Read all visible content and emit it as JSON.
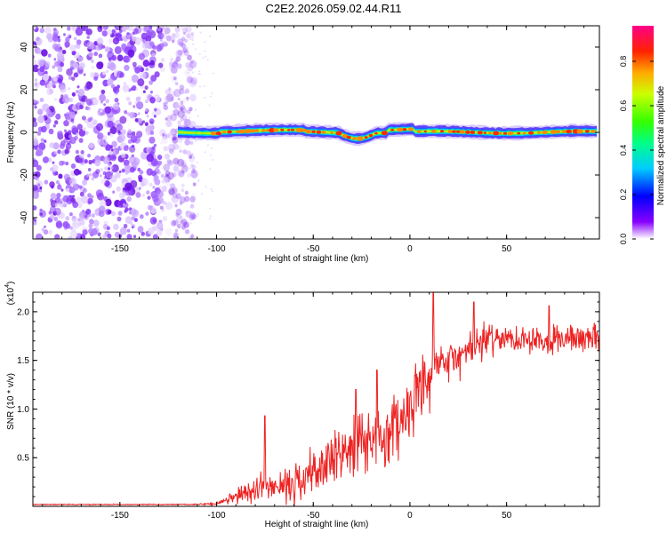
{
  "title": "C2E2.2026.059.02.44.R11",
  "chart_data": [
    {
      "type": "heatmap",
      "title": "C2E2.2026.059.02.44.R11",
      "xlabel": "Height of straight line (km)",
      "ylabel": "Frequency (Hz)",
      "xlim": [
        -195,
        98
      ],
      "ylim": [
        -50,
        50
      ],
      "x_ticks": [
        "-150",
        "-100",
        "-50",
        "0",
        "50"
      ],
      "y_ticks": [
        "40",
        "20",
        "0",
        "-20",
        "-40"
      ],
      "noise_region_x": [
        -195,
        -115
      ],
      "signal_region_x": [
        -120,
        98
      ],
      "signal_frequency_hz": 0,
      "colorbar": {
        "label": "Normalized spectral amplitude",
        "range": [
          0,
          0.96
        ],
        "ticks": [
          "0.0",
          "0.2",
          "0.4",
          "0.6",
          "0.8"
        ]
      }
    },
    {
      "type": "line",
      "xlabel": "Height of straight line (km)",
      "ylabel": "SNR (10 * v/v)",
      "y_scale_label": "(x10",
      "y_scale_exp": "4",
      "xlim": [
        -195,
        98
      ],
      "ylim": [
        0,
        2.2
      ],
      "x_ticks": [
        "-150",
        "-100",
        "-50",
        "0",
        "50"
      ],
      "y_ticks": [
        "2.0",
        "1.5",
        "1.0",
        "0.5"
      ],
      "color": "#ee2222",
      "series": [
        {
          "name": "SNR",
          "x": [
            -195,
            -150,
            -110,
            -100,
            -95,
            -85,
            -80,
            -76,
            -72,
            -65,
            -58,
            -52,
            -45,
            -38,
            -32,
            -25,
            -20,
            -15,
            -10,
            -5,
            0,
            5,
            10,
            12,
            15,
            20,
            25,
            30,
            35,
            40,
            45,
            50,
            55,
            60,
            65,
            70,
            75,
            80,
            85,
            90,
            98
          ],
          "y": [
            0.02,
            0.02,
            0.02,
            0.03,
            0.06,
            0.15,
            0.18,
            0.25,
            0.2,
            0.22,
            0.28,
            0.35,
            0.45,
            0.5,
            0.6,
            0.65,
            0.75,
            0.7,
            0.8,
            0.95,
            1.05,
            1.15,
            1.3,
            1.4,
            1.45,
            1.5,
            1.55,
            1.6,
            1.68,
            1.72,
            1.75,
            1.72,
            1.75,
            1.73,
            1.75,
            1.72,
            1.74,
            1.73,
            1.75,
            1.74,
            1.75
          ],
          "spread": [
            0.005,
            0.005,
            0.005,
            0.02,
            0.05,
            0.1,
            0.12,
            0.12,
            0.13,
            0.15,
            0.2,
            0.25,
            0.28,
            0.3,
            0.3,
            0.32,
            0.35,
            0.32,
            0.35,
            0.35,
            0.33,
            0.32,
            0.35,
            0.3,
            0.28,
            0.25,
            0.2,
            0.2,
            0.2,
            0.18,
            0.15,
            0.15,
            0.15,
            0.15,
            0.15,
            0.15,
            0.15,
            0.15,
            0.15,
            0.15,
            0.15
          ],
          "spikes": [
            {
              "x": -75,
              "y": 0.93
            },
            {
              "x": -28,
              "y": 1.2
            },
            {
              "x": -17,
              "y": 1.4
            },
            {
              "x": 12,
              "y": 2.2
            },
            {
              "x": 33,
              "y": 2.1
            },
            {
              "x": 72,
              "y": 2.06
            }
          ]
        }
      ]
    }
  ]
}
